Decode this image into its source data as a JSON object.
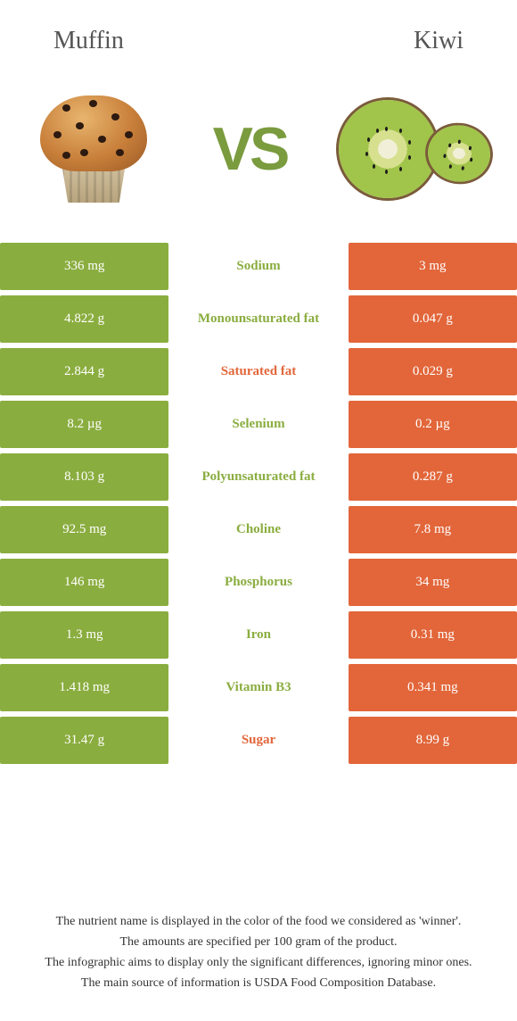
{
  "header": {
    "left_title": "Muffin",
    "right_title": "Kiwi",
    "vs_label": "VS"
  },
  "colors": {
    "left_bg": "#8aad3f",
    "right_bg": "#e2663a",
    "nutrient_left_text": "#8aad3f",
    "nutrient_right_text": "#e2663a",
    "vs_text": "#7a9b3e"
  },
  "table": {
    "rows": [
      {
        "left": "336 mg",
        "nutrient": "Sodium",
        "right": "3 mg",
        "winner": "left"
      },
      {
        "left": "4.822 g",
        "nutrient": "Monounsaturated fat",
        "right": "0.047 g",
        "winner": "left"
      },
      {
        "left": "2.844 g",
        "nutrient": "Saturated fat",
        "right": "0.029 g",
        "winner": "right"
      },
      {
        "left": "8.2 µg",
        "nutrient": "Selenium",
        "right": "0.2 µg",
        "winner": "left"
      },
      {
        "left": "8.103 g",
        "nutrient": "Polyunsaturated fat",
        "right": "0.287 g",
        "winner": "left"
      },
      {
        "left": "92.5 mg",
        "nutrient": "Choline",
        "right": "7.8 mg",
        "winner": "left"
      },
      {
        "left": "146 mg",
        "nutrient": "Phosphorus",
        "right": "34 mg",
        "winner": "left"
      },
      {
        "left": "1.3 mg",
        "nutrient": "Iron",
        "right": "0.31 mg",
        "winner": "left"
      },
      {
        "left": "1.418 mg",
        "nutrient": "Vitamin B3",
        "right": "0.341 mg",
        "winner": "left"
      },
      {
        "left": "31.47 g",
        "nutrient": "Sugar",
        "right": "8.99 g",
        "winner": "right"
      }
    ]
  },
  "footnotes": [
    "The nutrient name is displayed in the color of the food we considered as 'winner'.",
    "The amounts are specified per 100 gram of the product.",
    "The infographic aims to display only the significant differences, ignoring minor ones.",
    "The main source of information is USDA Food Composition Database."
  ]
}
